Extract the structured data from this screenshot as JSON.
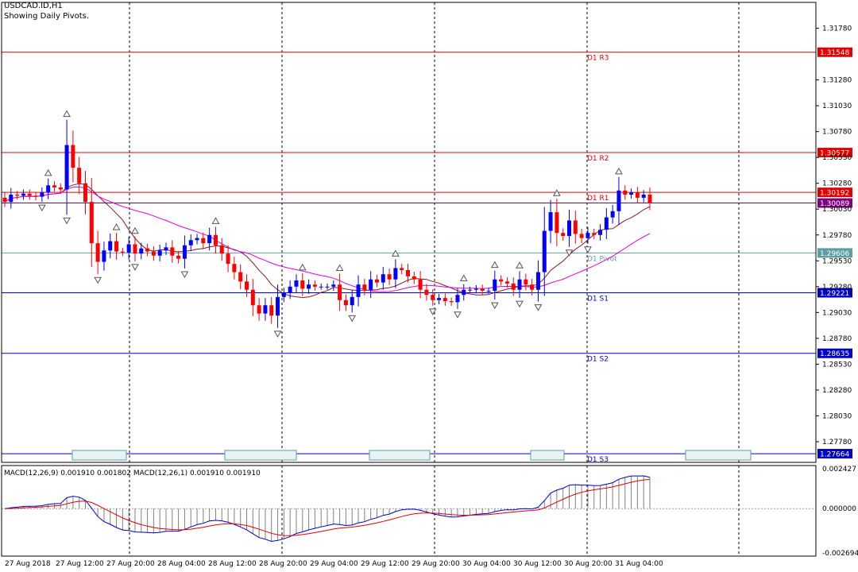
{
  "header": {
    "symbol": "USDCAD.ID,H1",
    "note": "Showing Daily Pivots."
  },
  "macd_label": "MACD(12,26,9) 0.001910 0.001802 MACD(12,26,1) 0.001910 0.001910",
  "chart_data": {
    "type": "candlestick",
    "y_ticks": [
      "1.31780",
      "1.31280",
      "1.31030",
      "1.30780",
      "1.30530",
      "1.30280",
      "1.30030",
      "1.29780",
      "1.29530",
      "1.29280",
      "1.29030",
      "1.28780",
      "1.28530",
      "1.28280",
      "1.28030",
      "1.27780"
    ],
    "ylim": [
      1.2758,
      1.3203
    ],
    "time_labels": [
      "27 Aug 2018",
      "27 Aug 12:00",
      "27 Aug 20:00",
      "28 Aug 04:00",
      "28 Aug 12:00",
      "28 Aug 20:00",
      "29 Aug 04:00",
      "29 Aug 12:00",
      "29 Aug 20:00",
      "30 Aug 04:00",
      "30 Aug 12:00",
      "30 Aug 20:00",
      "31 Aug 04:00"
    ],
    "pivot_levels": [
      {
        "name": "D1 R3",
        "value": "1.31548",
        "color": "#e00000"
      },
      {
        "name": "D1 R2",
        "value": "1.30577",
        "color": "#e00000"
      },
      {
        "name": "D1 R1",
        "value": "1.30192",
        "color": "#e00000"
      },
      {
        "name": "D1 Pivot",
        "value": "1.29606",
        "color": "#5f9ea0"
      },
      {
        "name": "D1 S1",
        "value": "1.29221",
        "color": "#0000c8"
      },
      {
        "name": "D1 S2",
        "value": "1.28635",
        "color": "#0000c8"
      },
      {
        "name": "D1 S3",
        "value": "1.27664",
        "color": "#0000c8"
      }
    ],
    "current_price": {
      "value": "1.30089",
      "color": "#800080"
    },
    "up_color": "#0000ff",
    "down_color": "#ff0000",
    "candles_close": [
      1.301,
      1.3017,
      1.3016,
      1.3018,
      1.3016,
      1.3015,
      1.3019,
      1.3026,
      1.3024,
      1.3022,
      1.3065,
      1.3043,
      1.3028,
      1.301,
      1.297,
      1.2952,
      1.2963,
      1.2972,
      1.2962,
      1.2961,
      1.2969,
      1.296,
      1.2965,
      1.2962,
      1.2958,
      1.2963,
      1.2966,
      1.2958,
      1.2955,
      1.2968,
      1.2973,
      1.2975,
      1.297,
      1.2978,
      1.2968,
      1.296,
      1.295,
      1.2942,
      1.2933,
      1.2925,
      1.291,
      1.2902,
      1.291,
      1.29,
      1.2918,
      1.2922,
      1.2928,
      1.2934,
      1.2926,
      1.293,
      1.2928,
      1.2928,
      1.2928,
      1.293,
      1.2915,
      1.291,
      1.2918,
      1.293,
      1.2925,
      1.2935,
      1.2932,
      1.294,
      1.2935,
      1.2946,
      1.2944,
      1.2938,
      1.2935,
      1.2925,
      1.292,
      1.2915,
      1.2917,
      1.2914,
      1.2913,
      1.292,
      1.2925,
      1.2925,
      1.2926,
      1.2924,
      1.2924,
      1.2935,
      1.2933,
      1.2931,
      1.2925,
      1.2935,
      1.293,
      1.2925,
      1.2942,
      1.2982,
      1.3,
      1.298,
      1.2977,
      1.2992,
      1.2979,
      1.2975,
      1.298,
      1.2978,
      1.2983,
      1.2995,
      1.3001,
      1.3021,
      1.3017,
      1.3019,
      1.3014,
      1.3017,
      1.3009
    ],
    "ma_fast_last": 1.3003,
    "ma_slow_last": 1.2988,
    "macd": {
      "y_ticks": [
        "0.002427",
        "0.000000",
        "-0.002694"
      ],
      "ylim": [
        -0.002694,
        0.002427
      ],
      "signal_last": 0.001802,
      "histogram_last": 0.00191
    }
  }
}
